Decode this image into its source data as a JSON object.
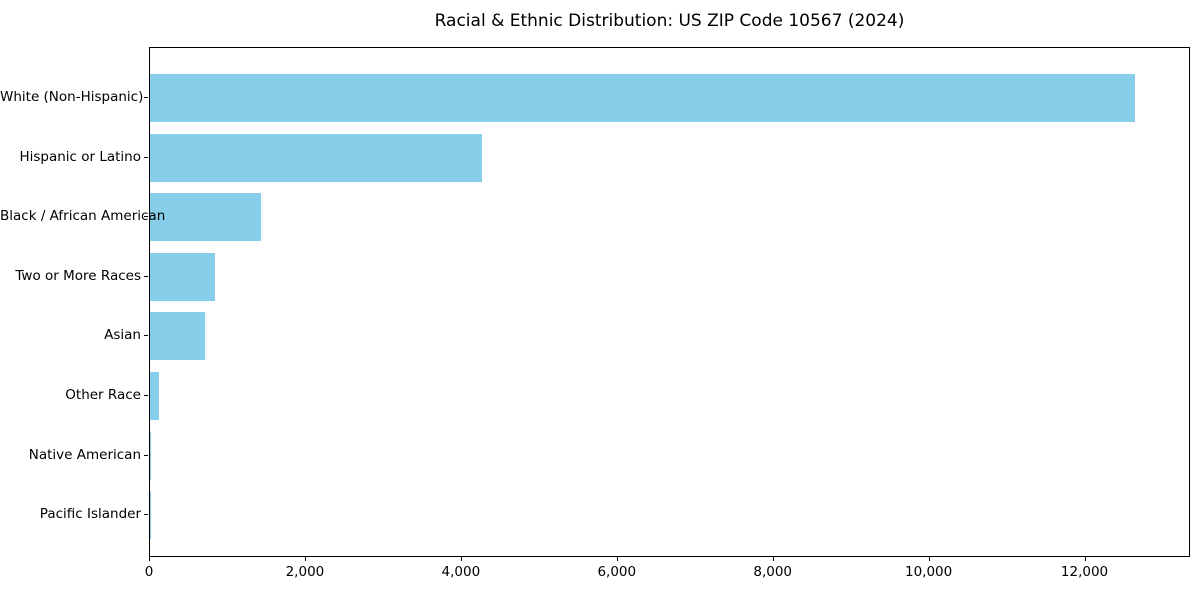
{
  "chart_data": {
    "type": "bar",
    "orientation": "horizontal",
    "title": "Racial & Ethnic Distribution: US ZIP Code 10567 (2024)",
    "categories": [
      "White (Non-Hispanic)",
      "Hispanic or Latino",
      "Black / African American",
      "Two or More Races",
      "Asian",
      "Other Race",
      "Native American",
      "Pacific Islander"
    ],
    "values": [
      12650,
      4260,
      1430,
      840,
      700,
      120,
      10,
      5
    ],
    "xlabel": "",
    "ylabel": "",
    "xlim": [
      0,
      13340
    ],
    "x_ticks": [
      0,
      2000,
      4000,
      6000,
      8000,
      10000,
      12000
    ],
    "x_tick_labels": [
      "0",
      "2,000",
      "4,000",
      "6,000",
      "8,000",
      "10,000",
      "12,000"
    ],
    "bar_color": "#87CEEB",
    "frame_color": "#000000",
    "background_color": "#ffffff",
    "grid": false,
    "legend": null
  }
}
